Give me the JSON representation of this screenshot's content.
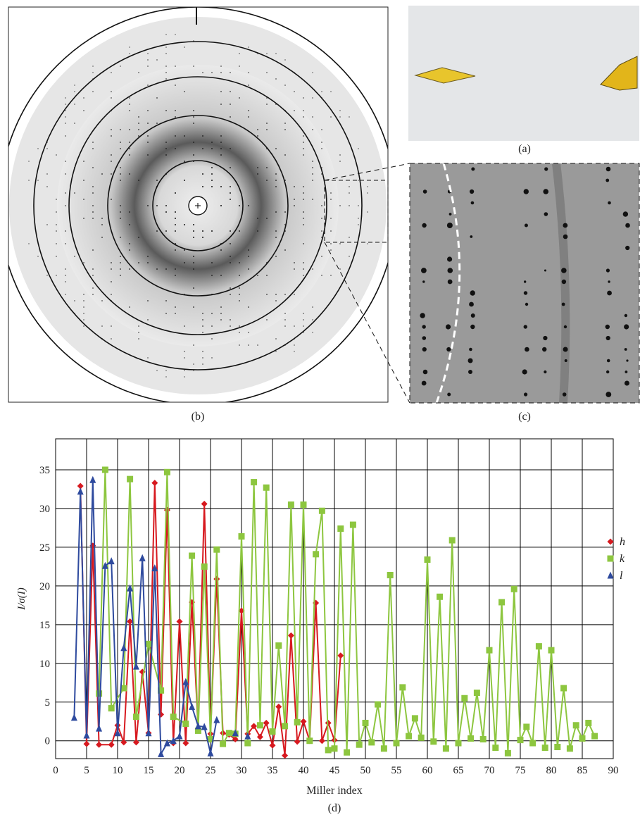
{
  "panels": {
    "a": "(a)",
    "b": "(b)",
    "c": "(c)"
  },
  "chart_data": {
    "type": "line",
    "caption": "(d)",
    "x_label": "Miller index",
    "y_label": "I/σ(I)",
    "xlim": [
      0,
      90
    ],
    "xticks": [
      0,
      5,
      10,
      15,
      20,
      25,
      30,
      35,
      40,
      45,
      50,
      55,
      60,
      65,
      70,
      75,
      80,
      85,
      90
    ],
    "ylim": [
      -2.3,
      39
    ],
    "yticks": [
      0,
      5,
      10,
      15,
      20,
      25,
      30,
      35
    ],
    "grid": true,
    "legend": "right",
    "series": [
      {
        "name": "h",
        "color": "#d7191f",
        "marker": "diamond",
        "x": [
          4,
          5,
          6,
          7,
          9,
          10,
          11,
          12,
          13,
          14,
          15,
          16,
          17,
          18,
          19,
          20,
          21,
          22,
          23,
          24,
          25,
          26,
          27,
          28,
          29,
          30,
          31,
          32,
          33,
          34,
          35,
          36,
          37,
          38,
          39,
          40,
          41,
          42,
          43,
          44,
          45,
          46
        ],
        "values": [
          32.9,
          -0.4,
          25.2,
          -0.5,
          -0.5,
          2.0,
          -0.2,
          15.4,
          -0.2,
          8.9,
          1.0,
          33.3,
          3.4,
          29.8,
          -0.3,
          15.4,
          -0.3,
          17.9,
          1.5,
          30.6,
          0.9,
          20.9,
          1.0,
          0.8,
          0.2,
          16.8,
          0.9,
          1.9,
          0.5,
          2.3,
          -0.6,
          4.4,
          -1.9,
          13.6,
          -0.1,
          2.5,
          0.0,
          17.8,
          0.0,
          2.3,
          0.1,
          11.0
        ]
      },
      {
        "name": "k",
        "color": "#8dc63f",
        "marker": "square",
        "x": [
          7,
          8,
          9,
          11,
          12,
          13,
          15,
          17,
          18,
          19,
          21,
          22,
          23,
          24,
          25,
          26,
          27,
          28,
          29,
          30,
          31,
          32,
          33,
          34,
          35,
          36,
          37,
          38,
          39,
          40,
          41,
          42,
          43,
          44,
          45,
          46,
          47,
          48,
          49,
          50,
          51,
          52,
          53,
          54,
          55,
          56,
          57,
          58,
          59,
          60,
          61,
          62,
          63,
          64,
          65,
          66,
          67,
          68,
          69,
          70,
          71,
          72,
          73,
          74,
          75,
          76,
          77,
          78,
          79,
          80,
          81,
          82,
          83,
          84,
          85,
          86,
          87
        ],
        "values": [
          6.1,
          35.0,
          4.2,
          6.8,
          33.8,
          3.1,
          12.5,
          6.5,
          34.7,
          3.1,
          2.2,
          23.9,
          1.3,
          22.5,
          0.2,
          24.7,
          -0.4,
          1.0,
          0.9,
          26.4,
          -0.3,
          33.4,
          2.0,
          32.7,
          1.2,
          12.3,
          1.9,
          30.5,
          2.4,
          30.5,
          0.0,
          24.1,
          29.7,
          -1.2,
          -1.0,
          27.4,
          -1.5,
          27.9,
          -0.5,
          2.3,
          -0.2,
          4.7,
          -1.0,
          21.4,
          -0.3,
          6.9,
          0.6,
          2.9,
          0.4,
          23.4,
          -0.1,
          18.6,
          -1.0,
          25.9,
          -0.3,
          5.5,
          0.3,
          6.2,
          0.2,
          11.7,
          -0.9,
          17.9,
          -1.6,
          19.6,
          0.1,
          1.8,
          -0.3,
          12.2,
          -0.9,
          11.7,
          -0.8,
          6.8,
          -1.0,
          2.0,
          0.3,
          2.3,
          0.6
        ]
      },
      {
        "name": "l",
        "color": "#2e4a9e",
        "marker": "triangle",
        "x": [
          3,
          4,
          5,
          6,
          7,
          8,
          9,
          10,
          11,
          12,
          13,
          14,
          15,
          16,
          17,
          18,
          19,
          20,
          21,
          22,
          23,
          24,
          25,
          26,
          27,
          28,
          29,
          30,
          31
        ],
        "values": [
          3.0,
          32.2,
          0.7,
          33.7,
          1.6,
          22.6,
          23.2,
          1.0,
          12.0,
          19.7,
          9.6,
          23.6,
          1.0,
          22.3,
          -1.7,
          -0.3,
          0.0,
          0.6,
          7.6,
          4.4,
          1.9,
          1.8,
          -1.6,
          2.7,
          null,
          null,
          1.0,
          null,
          0.6
        ]
      }
    ]
  }
}
